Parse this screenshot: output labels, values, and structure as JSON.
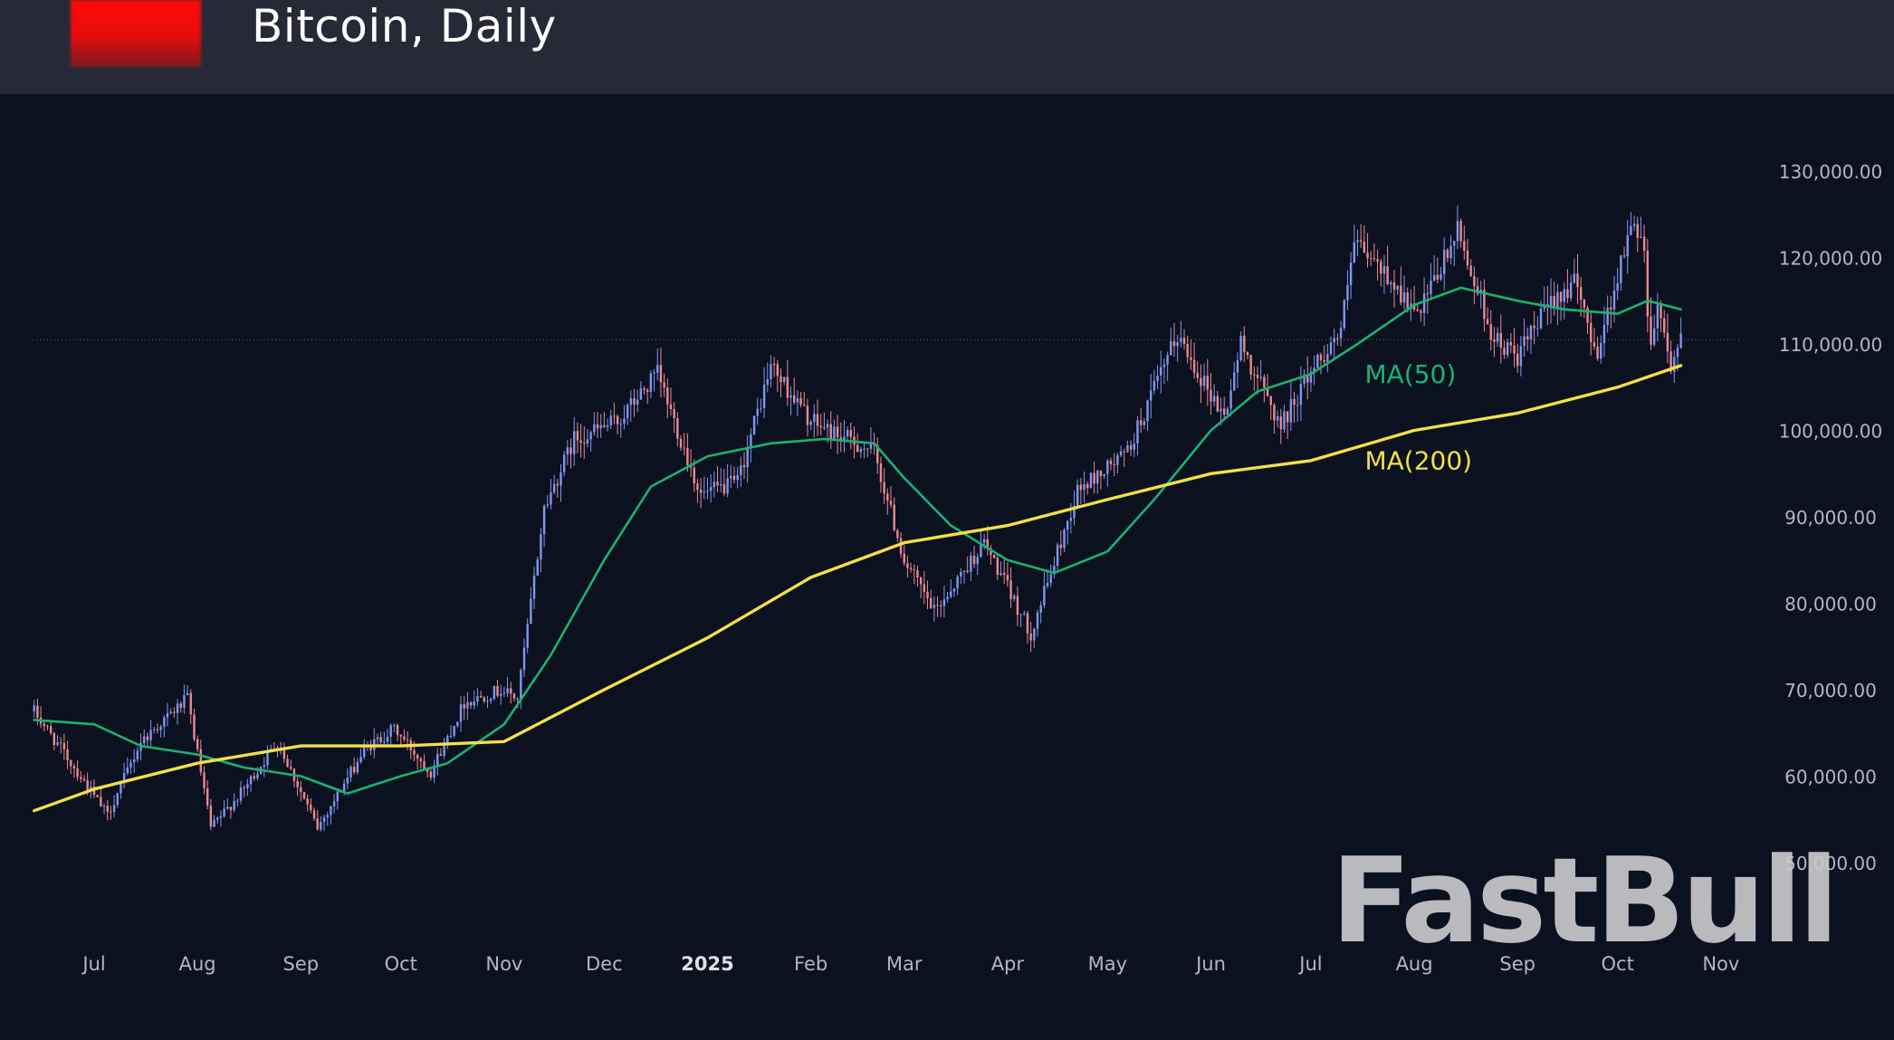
{
  "header": {
    "title": "Bitcoin, Daily"
  },
  "watermark": "FastBull",
  "colors": {
    "background": "#0c1120",
    "header": "#272a36",
    "up_candle": "#7e97f0",
    "down_candle": "#ea8a90",
    "ma50": "#19b370",
    "ma200": "#f4e046",
    "axis_text": "#b4b7c0",
    "current_price_line": "#5d6270"
  },
  "chart_data": {
    "type": "candlestick",
    "title": "Bitcoin, Daily",
    "y_ticks": [
      50000,
      60000,
      70000,
      80000,
      90000,
      100000,
      110000,
      120000,
      130000
    ],
    "y_tick_labels": [
      "50,000.00",
      "60,000.00",
      "70,000.00",
      "80,000.00",
      "90,000.00",
      "100,000.00",
      "110,000.00",
      "120,000.00",
      "130,000.00"
    ],
    "ylim": [
      45000,
      140000
    ],
    "x_ticks": [
      "Jul",
      "Aug",
      "Sep",
      "Oct",
      "Nov",
      "Dec",
      "2025",
      "Feb",
      "Mar",
      "Apr",
      "May",
      "Jun",
      "Jul",
      "Aug",
      "Sep",
      "Oct",
      "Nov"
    ],
    "x_range": [
      "2024-06-13",
      "2025-11-09"
    ],
    "current_price": 110500,
    "grid": false,
    "price_path": [
      [
        "2024-06-13",
        67500
      ],
      [
        "2024-06-25",
        61000
      ],
      [
        "2024-07-05",
        55500
      ],
      [
        "2024-07-15",
        64000
      ],
      [
        "2024-07-29",
        69000
      ],
      [
        "2024-08-05",
        54000
      ],
      [
        "2024-08-15",
        58500
      ],
      [
        "2024-08-25",
        64000
      ],
      [
        "2024-09-06",
        54000
      ],
      [
        "2024-09-20",
        63000
      ],
      [
        "2024-09-29",
        65500
      ],
      [
        "2024-10-10",
        60500
      ],
      [
        "2024-10-20",
        68500
      ],
      [
        "2024-10-31",
        70000
      ],
      [
        "2024-11-05",
        69000
      ],
      [
        "2024-11-13",
        91000
      ],
      [
        "2024-11-22",
        99000
      ],
      [
        "2024-12-05",
        101000
      ],
      [
        "2024-12-17",
        106500
      ],
      [
        "2024-12-30",
        92500
      ],
      [
        "2025-01-10",
        94000
      ],
      [
        "2025-01-20",
        107500
      ],
      [
        "2025-02-01",
        101000
      ],
      [
        "2025-02-20",
        97500
      ],
      [
        "2025-03-01",
        85000
      ],
      [
        "2025-03-10",
        79000
      ],
      [
        "2025-03-25",
        87000
      ],
      [
        "2025-04-08",
        76500
      ],
      [
        "2025-04-22",
        93000
      ],
      [
        "2025-05-07",
        97500
      ],
      [
        "2025-05-22",
        111000
      ],
      [
        "2025-06-05",
        101500
      ],
      [
        "2025-06-10",
        110000
      ],
      [
        "2025-06-22",
        100500
      ],
      [
        "2025-07-01",
        107000
      ],
      [
        "2025-07-10",
        111500
      ],
      [
        "2025-07-14",
        121500
      ],
      [
        "2025-07-25",
        117500
      ],
      [
        "2025-08-02",
        113000
      ],
      [
        "2025-08-14",
        123000
      ],
      [
        "2025-08-25",
        110500
      ],
      [
        "2025-09-01",
        108500
      ],
      [
        "2025-09-12",
        115500
      ],
      [
        "2025-09-18",
        117000
      ],
      [
        "2025-09-25",
        109000
      ],
      [
        "2025-10-01",
        118000
      ],
      [
        "2025-10-06",
        124500
      ],
      [
        "2025-10-09",
        121500
      ],
      [
        "2025-10-10",
        113000
      ],
      [
        "2025-10-11",
        110500
      ],
      [
        "2025-10-13",
        115000
      ],
      [
        "2025-10-17",
        107500
      ],
      [
        "2025-10-20",
        110500
      ]
    ],
    "series": [
      {
        "name": "MA(50)",
        "color": "#19b370",
        "points": [
          [
            "2024-06-13",
            66500
          ],
          [
            "2024-07-01",
            66000
          ],
          [
            "2024-07-15",
            63500
          ],
          [
            "2024-08-01",
            62500
          ],
          [
            "2024-08-15",
            61000
          ],
          [
            "2024-09-01",
            60000
          ],
          [
            "2024-09-15",
            58000
          ],
          [
            "2024-10-01",
            60000
          ],
          [
            "2024-10-15",
            61500
          ],
          [
            "2024-11-01",
            66000
          ],
          [
            "2024-11-15",
            74000
          ],
          [
            "2024-12-01",
            85000
          ],
          [
            "2024-12-15",
            93500
          ],
          [
            "2025-01-01",
            97000
          ],
          [
            "2025-01-20",
            98500
          ],
          [
            "2025-02-05",
            99000
          ],
          [
            "2025-02-20",
            98500
          ],
          [
            "2025-03-01",
            94500
          ],
          [
            "2025-03-15",
            89000
          ],
          [
            "2025-04-01",
            85000
          ],
          [
            "2025-04-15",
            83500
          ],
          [
            "2025-05-01",
            86000
          ],
          [
            "2025-05-15",
            92000
          ],
          [
            "2025-06-01",
            100000
          ],
          [
            "2025-06-15",
            104500
          ],
          [
            "2025-07-01",
            106500
          ],
          [
            "2025-07-15",
            110000
          ],
          [
            "2025-08-01",
            114500
          ],
          [
            "2025-08-15",
            116500
          ],
          [
            "2025-09-01",
            115000
          ],
          [
            "2025-09-15",
            114000
          ],
          [
            "2025-10-01",
            113500
          ],
          [
            "2025-10-10",
            115000
          ],
          [
            "2025-10-20",
            114000
          ]
        ]
      },
      {
        "name": "MA(200)",
        "color": "#f4e046",
        "points": [
          [
            "2024-06-13",
            56000
          ],
          [
            "2024-07-01",
            58500
          ],
          [
            "2024-08-01",
            61500
          ],
          [
            "2024-09-01",
            63500
          ],
          [
            "2024-10-01",
            63500
          ],
          [
            "2024-11-01",
            64000
          ],
          [
            "2024-12-01",
            70000
          ],
          [
            "2025-01-01",
            76000
          ],
          [
            "2025-02-01",
            83000
          ],
          [
            "2025-03-01",
            87000
          ],
          [
            "2025-04-01",
            89000
          ],
          [
            "2025-05-01",
            92000
          ],
          [
            "2025-06-01",
            95000
          ],
          [
            "2025-07-01",
            96500
          ],
          [
            "2025-08-01",
            100000
          ],
          [
            "2025-09-01",
            102000
          ],
          [
            "2025-10-01",
            105000
          ],
          [
            "2025-10-20",
            107500
          ]
        ]
      }
    ],
    "annotations": [
      {
        "text": "MA(50)",
        "color": "#19b370",
        "at": [
          "2025-07-15",
          105500
        ]
      },
      {
        "text": "MA(200)",
        "color": "#f4e046",
        "at": [
          "2025-07-15",
          95500
        ]
      }
    ]
  }
}
